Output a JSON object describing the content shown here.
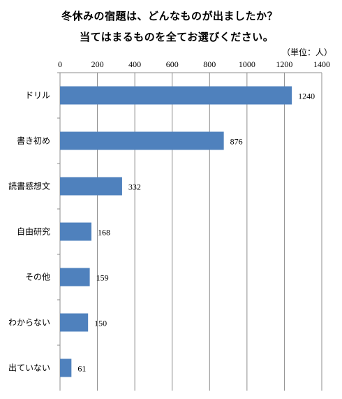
{
  "chart_data": {
    "type": "bar",
    "orientation": "horizontal",
    "title": [
      "冬休みの宿題は、どんなものが出ましたか？",
      "当てはまるものを全てお選びください。"
    ],
    "unit_label": "（単位：人）",
    "categories": [
      "ドリル",
      "書き初め",
      "読書感想文",
      "自由研究",
      "その他",
      "わからない",
      "出ていない"
    ],
    "values": [
      1240,
      876,
      332,
      168,
      159,
      150,
      61
    ],
    "xlim": [
      0,
      1400
    ],
    "xticks": [
      "0",
      "200",
      "400",
      "600",
      "800",
      "1000",
      "1200",
      "1400"
    ],
    "axis_position": "top",
    "grid": true,
    "bar_color": "#4f81bd",
    "legend": "none"
  }
}
